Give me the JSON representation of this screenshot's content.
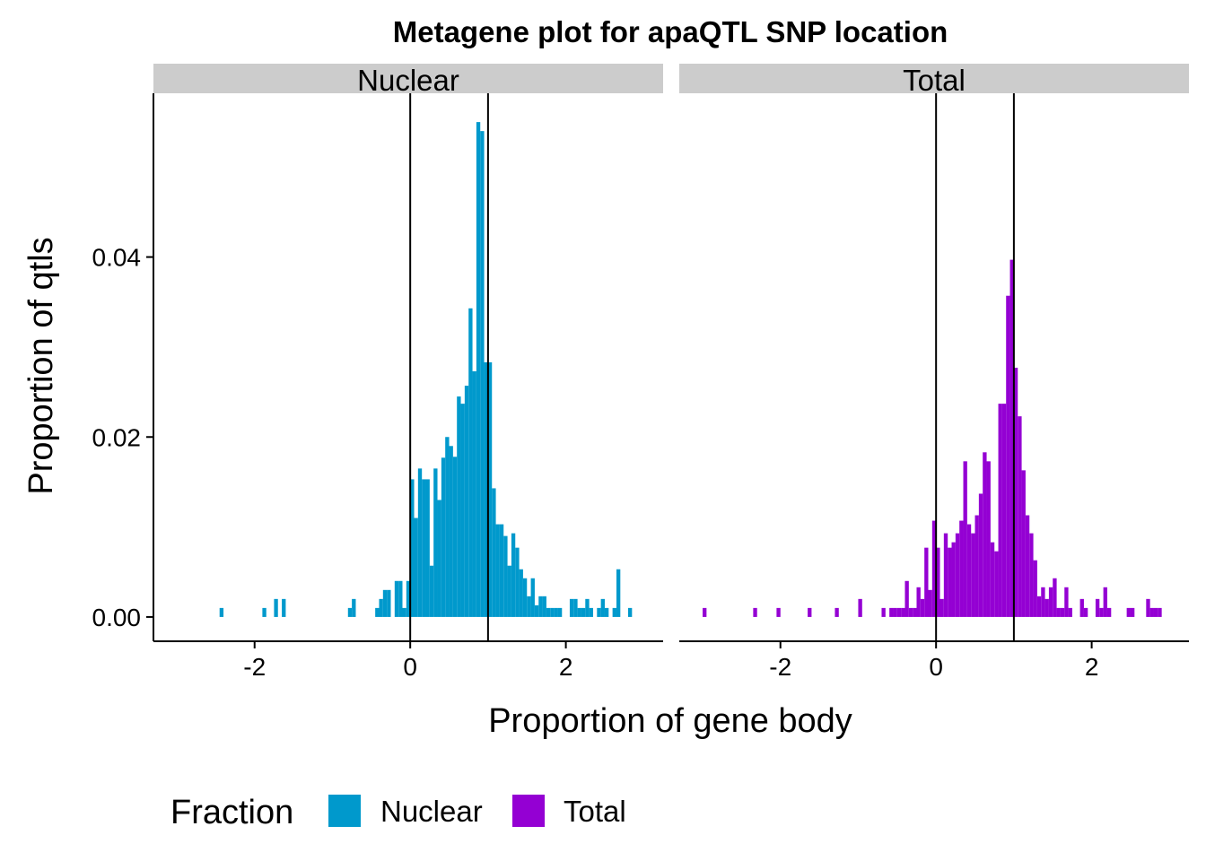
{
  "chart_data": {
    "type": "bar",
    "title": "Metagene plot for apaQTL SNP location",
    "xlabel": "Proportion of gene body",
    "ylabel": "Proportion of qtls",
    "xlim": [
      -3.3,
      3.25
    ],
    "ylim": [
      -0.0027,
      0.0582
    ],
    "x_ticks": [
      {
        "value": -2,
        "label": "-2"
      },
      {
        "value": 0,
        "label": "0"
      },
      {
        "value": 2,
        "label": "2"
      }
    ],
    "y_ticks": [
      {
        "value": 0.0,
        "label": "0.00"
      },
      {
        "value": 0.02,
        "label": "0.02"
      },
      {
        "value": 0.04,
        "label": "0.04"
      }
    ],
    "reference_lines_x": [
      0,
      1
    ],
    "bin_width": 0.05,
    "legend": {
      "title": "Fraction",
      "position": "bottom",
      "entries": [
        {
          "label": "Nuclear",
          "color": "#0099CC"
        },
        {
          "label": "Total",
          "color": "#9400D3"
        }
      ]
    },
    "panels": [
      {
        "name": "Nuclear",
        "label": "Nuclear",
        "color": "#0099CC",
        "bins": [
          [
            -2.45,
            0.001
          ],
          [
            -1.9,
            0.001
          ],
          [
            -1.75,
            0.002
          ],
          [
            -1.65,
            0.002
          ],
          [
            -0.8,
            0.001
          ],
          [
            -0.75,
            0.002
          ],
          [
            -0.45,
            0.001
          ],
          [
            -0.4,
            0.002
          ],
          [
            -0.35,
            0.003
          ],
          [
            -0.3,
            0.003
          ],
          [
            -0.2,
            0.004
          ],
          [
            -0.15,
            0.004
          ],
          [
            -0.1,
            0.001
          ],
          [
            -0.05,
            0.004
          ],
          [
            0.0,
            0.0153
          ],
          [
            0.05,
            0.011
          ],
          [
            0.1,
            0.0165
          ],
          [
            0.15,
            0.0153
          ],
          [
            0.2,
            0.0153
          ],
          [
            0.25,
            0.0057
          ],
          [
            0.3,
            0.0165
          ],
          [
            0.35,
            0.013
          ],
          [
            0.4,
            0.0177
          ],
          [
            0.45,
            0.02
          ],
          [
            0.5,
            0.019
          ],
          [
            0.55,
            0.0178
          ],
          [
            0.6,
            0.0245
          ],
          [
            0.65,
            0.0237
          ],
          [
            0.7,
            0.0257
          ],
          [
            0.75,
            0.0343
          ],
          [
            0.8,
            0.0273
          ],
          [
            0.85,
            0.055
          ],
          [
            0.9,
            0.054
          ],
          [
            0.95,
            0.0283
          ],
          [
            1.0,
            0.0283
          ],
          [
            1.05,
            0.0143
          ],
          [
            1.1,
            0.0103
          ],
          [
            1.15,
            0.0103
          ],
          [
            1.2,
            0.009
          ],
          [
            1.25,
            0.0057
          ],
          [
            1.3,
            0.0093
          ],
          [
            1.35,
            0.0077
          ],
          [
            1.4,
            0.0053
          ],
          [
            1.45,
            0.0043
          ],
          [
            1.5,
            0.0023
          ],
          [
            1.55,
            0.0043
          ],
          [
            1.6,
            0.0013
          ],
          [
            1.65,
            0.0023
          ],
          [
            1.7,
            0.0023
          ],
          [
            1.75,
            0.001
          ],
          [
            1.8,
            0.001
          ],
          [
            1.85,
            0.001
          ],
          [
            1.9,
            0.001
          ],
          [
            2.05,
            0.002
          ],
          [
            2.1,
            0.002
          ],
          [
            2.15,
            0.001
          ],
          [
            2.2,
            0.001
          ],
          [
            2.25,
            0.002
          ],
          [
            2.3,
            0.001
          ],
          [
            2.4,
            0.001
          ],
          [
            2.45,
            0.002
          ],
          [
            2.5,
            0.001
          ],
          [
            2.6,
            0.001
          ],
          [
            2.65,
            0.0053
          ],
          [
            2.8,
            0.001
          ]
        ]
      },
      {
        "name": "Total",
        "label": "Total",
        "color": "#9400D3",
        "bins": [
          [
            -3.0,
            0.001
          ],
          [
            -2.35,
            0.001
          ],
          [
            -2.05,
            0.001
          ],
          [
            -1.65,
            0.001
          ],
          [
            -1.3,
            0.001
          ],
          [
            -1.0,
            0.002
          ],
          [
            -0.7,
            0.001
          ],
          [
            -0.6,
            0.001
          ],
          [
            -0.55,
            0.001
          ],
          [
            -0.5,
            0.001
          ],
          [
            -0.45,
            0.001
          ],
          [
            -0.4,
            0.004
          ],
          [
            -0.35,
            0.001
          ],
          [
            -0.3,
            0.001
          ],
          [
            -0.25,
            0.0033
          ],
          [
            -0.2,
            0.002
          ],
          [
            -0.15,
            0.0077
          ],
          [
            -0.1,
            0.003
          ],
          [
            -0.05,
            0.0107
          ],
          [
            0.0,
            0.0077
          ],
          [
            0.05,
            0.002
          ],
          [
            0.1,
            0.0093
          ],
          [
            0.15,
            0.0077
          ],
          [
            0.2,
            0.0083
          ],
          [
            0.25,
            0.0093
          ],
          [
            0.3,
            0.0107
          ],
          [
            0.35,
            0.0173
          ],
          [
            0.4,
            0.0103
          ],
          [
            0.45,
            0.0093
          ],
          [
            0.5,
            0.0113
          ],
          [
            0.55,
            0.0137
          ],
          [
            0.6,
            0.0183
          ],
          [
            0.65,
            0.0173
          ],
          [
            0.7,
            0.0083
          ],
          [
            0.75,
            0.0073
          ],
          [
            0.8,
            0.0237
          ],
          [
            0.85,
            0.0237
          ],
          [
            0.9,
            0.0357
          ],
          [
            0.95,
            0.0397
          ],
          [
            1.0,
            0.0277
          ],
          [
            1.05,
            0.0223
          ],
          [
            1.1,
            0.0163
          ],
          [
            1.15,
            0.0113
          ],
          [
            1.2,
            0.0093
          ],
          [
            1.25,
            0.0063
          ],
          [
            1.3,
            0.0023
          ],
          [
            1.35,
            0.0033
          ],
          [
            1.4,
            0.002
          ],
          [
            1.45,
            0.0033
          ],
          [
            1.5,
            0.0043
          ],
          [
            1.55,
            0.001
          ],
          [
            1.6,
            0.001
          ],
          [
            1.65,
            0.0033
          ],
          [
            1.7,
            0.001
          ],
          [
            1.85,
            0.002
          ],
          [
            1.9,
            0.001
          ],
          [
            2.05,
            0.002
          ],
          [
            2.1,
            0.001
          ],
          [
            2.15,
            0.0033
          ],
          [
            2.2,
            0.001
          ],
          [
            2.45,
            0.001
          ],
          [
            2.5,
            0.001
          ],
          [
            2.7,
            0.002
          ],
          [
            2.75,
            0.001
          ],
          [
            2.8,
            0.001
          ],
          [
            2.85,
            0.001
          ]
        ]
      }
    ]
  }
}
